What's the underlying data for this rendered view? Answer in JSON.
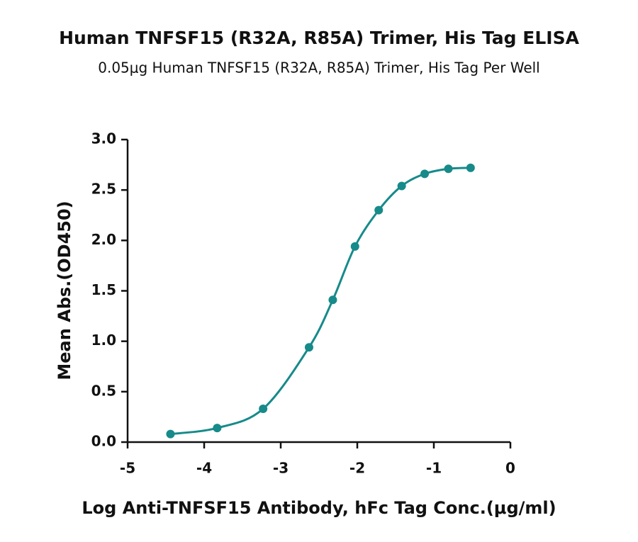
{
  "chart_data": {
    "type": "line",
    "title": "Human TNFSF15 (R32A, R85A) Trimer, His Tag ELISA",
    "subtitle": "0.05μg Human TNFSF15 (R32A, R85A) Trimer, His Tag Per Well",
    "x_label": "Log Anti-TNFSF15 Antibody, hFc Tag Conc.(μg/ml)",
    "y_label": "Mean Abs.(OD450)",
    "x": [
      -4.44,
      -3.83,
      -3.23,
      -2.63,
      -2.32,
      -2.03,
      -1.72,
      -1.42,
      -1.12,
      -0.81,
      -0.52
    ],
    "series": [
      {
        "color": "#178a8a",
        "values": [
          0.08,
          0.14,
          0.33,
          0.94,
          1.41,
          1.94,
          2.3,
          2.54,
          2.66,
          2.71,
          2.72
        ]
      }
    ],
    "xlim": [
      -5,
      0
    ],
    "xticks": [
      -5,
      -4,
      -3,
      -2,
      -1,
      0
    ],
    "ylim": [
      0,
      3
    ],
    "yticks": [
      {
        "value": 0,
        "label": "0.0"
      },
      0.5,
      {
        "value": 1,
        "label": "1.0"
      },
      1.5,
      {
        "value": 2,
        "label": "2.0"
      },
      2.5,
      {
        "value": 3,
        "label": "3.0"
      }
    ]
  }
}
